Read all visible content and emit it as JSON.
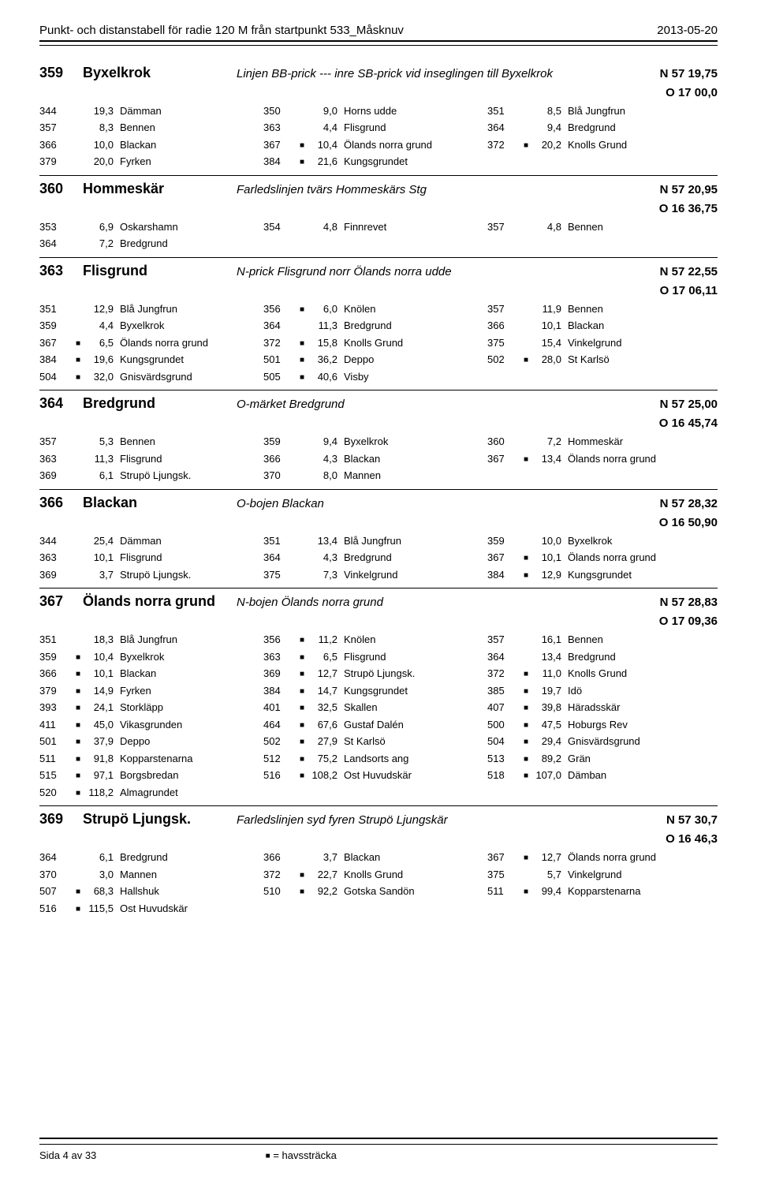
{
  "header": {
    "title": "Punkt- och distanstabell för radie 120 M från startpunkt 533_Måsknuv",
    "date": "2013-05-20"
  },
  "footer": {
    "page": "Sida 4 av 33",
    "legend_mark": "■",
    "legend_text": " = havssträcka"
  },
  "sections": [
    {
      "id": "359",
      "name": "Byxelkrok",
      "desc": "Linjen BB-prick --- inre SB-prick vid inseglingen till Byxelkrok",
      "coord1": "N 57 19,75",
      "coord2": "O 17 00,0",
      "rows": [
        [
          {
            "id": "344",
            "m": "",
            "d": "19,3",
            "n": "Dämman"
          },
          {
            "id": "350",
            "m": "",
            "d": "9,0",
            "n": "Horns udde"
          },
          {
            "id": "351",
            "m": "",
            "d": "8,5",
            "n": "Blå Jungfrun"
          }
        ],
        [
          {
            "id": "357",
            "m": "",
            "d": "8,3",
            "n": "Bennen"
          },
          {
            "id": "363",
            "m": "",
            "d": "4,4",
            "n": "Flisgrund"
          },
          {
            "id": "364",
            "m": "",
            "d": "9,4",
            "n": "Bredgrund"
          }
        ],
        [
          {
            "id": "366",
            "m": "",
            "d": "10,0",
            "n": "Blackan"
          },
          {
            "id": "367",
            "m": "■",
            "d": "10,4",
            "n": "Ölands norra grund"
          },
          {
            "id": "372",
            "m": "■",
            "d": "20,2",
            "n": "Knolls Grund"
          }
        ],
        [
          {
            "id": "379",
            "m": "",
            "d": "20,0",
            "n": "Fyrken"
          },
          {
            "id": "384",
            "m": "■",
            "d": "21,6",
            "n": "Kungsgrundet"
          }
        ]
      ]
    },
    {
      "id": "360",
      "name": "Hommeskär",
      "desc": "Farledslinjen tvärs Hommeskärs Stg",
      "coord1": "N 57 20,95",
      "coord2": "O 16 36,75",
      "rows": [
        [
          {
            "id": "353",
            "m": "",
            "d": "6,9",
            "n": "Oskarshamn"
          },
          {
            "id": "354",
            "m": "",
            "d": "4,8",
            "n": "Finnrevet"
          },
          {
            "id": "357",
            "m": "",
            "d": "4,8",
            "n": "Bennen"
          }
        ],
        [
          {
            "id": "364",
            "m": "",
            "d": "7,2",
            "n": "Bredgrund"
          }
        ]
      ]
    },
    {
      "id": "363",
      "name": "Flisgrund",
      "desc": "N-prick Flisgrund  norr Ölands norra udde",
      "coord1": "N 57 22,55",
      "coord2": "O 17 06,11",
      "rows": [
        [
          {
            "id": "351",
            "m": "",
            "d": "12,9",
            "n": "Blå Jungfrun"
          },
          {
            "id": "356",
            "m": "■",
            "d": "6,0",
            "n": "Knölen"
          },
          {
            "id": "357",
            "m": "",
            "d": "11,9",
            "n": "Bennen"
          }
        ],
        [
          {
            "id": "359",
            "m": "",
            "d": "4,4",
            "n": "Byxelkrok"
          },
          {
            "id": "364",
            "m": "",
            "d": "11,3",
            "n": "Bredgrund"
          },
          {
            "id": "366",
            "m": "",
            "d": "10,1",
            "n": "Blackan"
          }
        ],
        [
          {
            "id": "367",
            "m": "■",
            "d": "6,5",
            "n": "Ölands norra grund"
          },
          {
            "id": "372",
            "m": "■",
            "d": "15,8",
            "n": "Knolls Grund"
          },
          {
            "id": "375",
            "m": "",
            "d": "15,4",
            "n": "Vinkelgrund"
          }
        ],
        [
          {
            "id": "384",
            "m": "■",
            "d": "19,6",
            "n": "Kungsgrundet"
          },
          {
            "id": "501",
            "m": "■",
            "d": "36,2",
            "n": "Deppo"
          },
          {
            "id": "502",
            "m": "■",
            "d": "28,0",
            "n": "St Karlsö"
          }
        ],
        [
          {
            "id": "504",
            "m": "■",
            "d": "32,0",
            "n": "Gnisvärdsgrund"
          },
          {
            "id": "505",
            "m": "■",
            "d": "40,6",
            "n": "Visby"
          }
        ]
      ]
    },
    {
      "id": "364",
      "name": "Bredgrund",
      "desc": "O-märket Bredgrund",
      "coord1": "N 57 25,00",
      "coord2": "O 16 45,74",
      "rows": [
        [
          {
            "id": "357",
            "m": "",
            "d": "5,3",
            "n": "Bennen"
          },
          {
            "id": "359",
            "m": "",
            "d": "9,4",
            "n": "Byxelkrok"
          },
          {
            "id": "360",
            "m": "",
            "d": "7,2",
            "n": "Hommeskär"
          }
        ],
        [
          {
            "id": "363",
            "m": "",
            "d": "11,3",
            "n": "Flisgrund"
          },
          {
            "id": "366",
            "m": "",
            "d": "4,3",
            "n": "Blackan"
          },
          {
            "id": "367",
            "m": "■",
            "d": "13,4",
            "n": "Ölands norra grund"
          }
        ],
        [
          {
            "id": "369",
            "m": "",
            "d": "6,1",
            "n": "Strupö Ljungsk."
          },
          {
            "id": "370",
            "m": "",
            "d": "8,0",
            "n": "Mannen"
          }
        ]
      ]
    },
    {
      "id": "366",
      "name": "Blackan",
      "desc": "O-bojen Blackan",
      "coord1": "N 57 28,32",
      "coord2": "O 16 50,90",
      "rows": [
        [
          {
            "id": "344",
            "m": "",
            "d": "25,4",
            "n": "Dämman"
          },
          {
            "id": "351",
            "m": "",
            "d": "13,4",
            "n": "Blå Jungfrun"
          },
          {
            "id": "359",
            "m": "",
            "d": "10,0",
            "n": "Byxelkrok"
          }
        ],
        [
          {
            "id": "363",
            "m": "",
            "d": "10,1",
            "n": "Flisgrund"
          },
          {
            "id": "364",
            "m": "",
            "d": "4,3",
            "n": "Bredgrund"
          },
          {
            "id": "367",
            "m": "■",
            "d": "10,1",
            "n": "Ölands norra grund"
          }
        ],
        [
          {
            "id": "369",
            "m": "",
            "d": "3,7",
            "n": "Strupö Ljungsk."
          },
          {
            "id": "375",
            "m": "",
            "d": "7,3",
            "n": "Vinkelgrund"
          },
          {
            "id": "384",
            "m": "■",
            "d": "12,9",
            "n": "Kungsgrundet"
          }
        ]
      ]
    },
    {
      "id": "367",
      "name": "Ölands norra grund",
      "desc": "N-bojen Ölands norra grund",
      "coord1": "N 57 28,83",
      "coord2": "O 17 09,36",
      "rows": [
        [
          {
            "id": "351",
            "m": "",
            "d": "18,3",
            "n": "Blå Jungfrun"
          },
          {
            "id": "356",
            "m": "■",
            "d": "11,2",
            "n": "Knölen"
          },
          {
            "id": "357",
            "m": "",
            "d": "16,1",
            "n": "Bennen"
          }
        ],
        [
          {
            "id": "359",
            "m": "■",
            "d": "10,4",
            "n": "Byxelkrok"
          },
          {
            "id": "363",
            "m": "■",
            "d": "6,5",
            "n": "Flisgrund"
          },
          {
            "id": "364",
            "m": "",
            "d": "13,4",
            "n": "Bredgrund"
          }
        ],
        [
          {
            "id": "366",
            "m": "■",
            "d": "10,1",
            "n": "Blackan"
          },
          {
            "id": "369",
            "m": "■",
            "d": "12,7",
            "n": "Strupö Ljungsk."
          },
          {
            "id": "372",
            "m": "■",
            "d": "11,0",
            "n": "Knolls Grund"
          }
        ],
        [
          {
            "id": "379",
            "m": "■",
            "d": "14,9",
            "n": "Fyrken"
          },
          {
            "id": "384",
            "m": "■",
            "d": "14,7",
            "n": "Kungsgrundet"
          },
          {
            "id": "385",
            "m": "■",
            "d": "19,7",
            "n": "Idö"
          }
        ],
        [
          {
            "id": "393",
            "m": "■",
            "d": "24,1",
            "n": "Storkläpp"
          },
          {
            "id": "401",
            "m": "■",
            "d": "32,5",
            "n": "Skallen"
          },
          {
            "id": "407",
            "m": "■",
            "d": "39,8",
            "n": "Häradsskär"
          }
        ],
        [
          {
            "id": "411",
            "m": "■",
            "d": "45,0",
            "n": "Vikasgrunden"
          },
          {
            "id": "464",
            "m": "■",
            "d": "67,6",
            "n": "Gustaf Dalén"
          },
          {
            "id": "500",
            "m": "■",
            "d": "47,5",
            "n": "Hoburgs Rev"
          }
        ],
        [
          {
            "id": "501",
            "m": "■",
            "d": "37,9",
            "n": "Deppo"
          },
          {
            "id": "502",
            "m": "■",
            "d": "27,9",
            "n": "St Karlsö"
          },
          {
            "id": "504",
            "m": "■",
            "d": "29,4",
            "n": "Gnisvärdsgrund"
          }
        ],
        [
          {
            "id": "511",
            "m": "■",
            "d": "91,8",
            "n": "Kopparstenarna"
          },
          {
            "id": "512",
            "m": "■",
            "d": "75,2",
            "n": "Landsorts ang"
          },
          {
            "id": "513",
            "m": "■",
            "d": "89,2",
            "n": "Grän"
          }
        ],
        [
          {
            "id": "515",
            "m": "■",
            "d": "97,1",
            "n": "Borgsbredan"
          },
          {
            "id": "516",
            "m": "■",
            "d": "108,2",
            "n": "Ost Huvudskär"
          },
          {
            "id": "518",
            "m": "■",
            "d": "107,0",
            "n": "Dämban"
          }
        ],
        [
          {
            "id": "520",
            "m": "■",
            "d": "118,2",
            "n": "Almagrundet"
          }
        ]
      ]
    },
    {
      "id": "369",
      "name": "Strupö Ljungsk.",
      "desc": "Farledslinjen syd fyren Strupö Ljungskär",
      "coord1": "N 57 30,7",
      "coord2": "O 16 46,3",
      "rows": [
        [
          {
            "id": "364",
            "m": "",
            "d": "6,1",
            "n": "Bredgrund"
          },
          {
            "id": "366",
            "m": "",
            "d": "3,7",
            "n": "Blackan"
          },
          {
            "id": "367",
            "m": "■",
            "d": "12,7",
            "n": "Ölands norra grund"
          }
        ],
        [
          {
            "id": "370",
            "m": "",
            "d": "3,0",
            "n": "Mannen"
          },
          {
            "id": "372",
            "m": "■",
            "d": "22,7",
            "n": "Knolls Grund"
          },
          {
            "id": "375",
            "m": "",
            "d": "5,7",
            "n": "Vinkelgrund"
          }
        ],
        [
          {
            "id": "507",
            "m": "■",
            "d": "68,3",
            "n": "Hallshuk"
          },
          {
            "id": "510",
            "m": "■",
            "d": "92,2",
            "n": "Gotska Sandön"
          },
          {
            "id": "511",
            "m": "■",
            "d": "99,4",
            "n": "Kopparstenarna"
          }
        ],
        [
          {
            "id": "516",
            "m": "■",
            "d": "115,5",
            "n": "Ost Huvudskär"
          }
        ]
      ]
    }
  ]
}
